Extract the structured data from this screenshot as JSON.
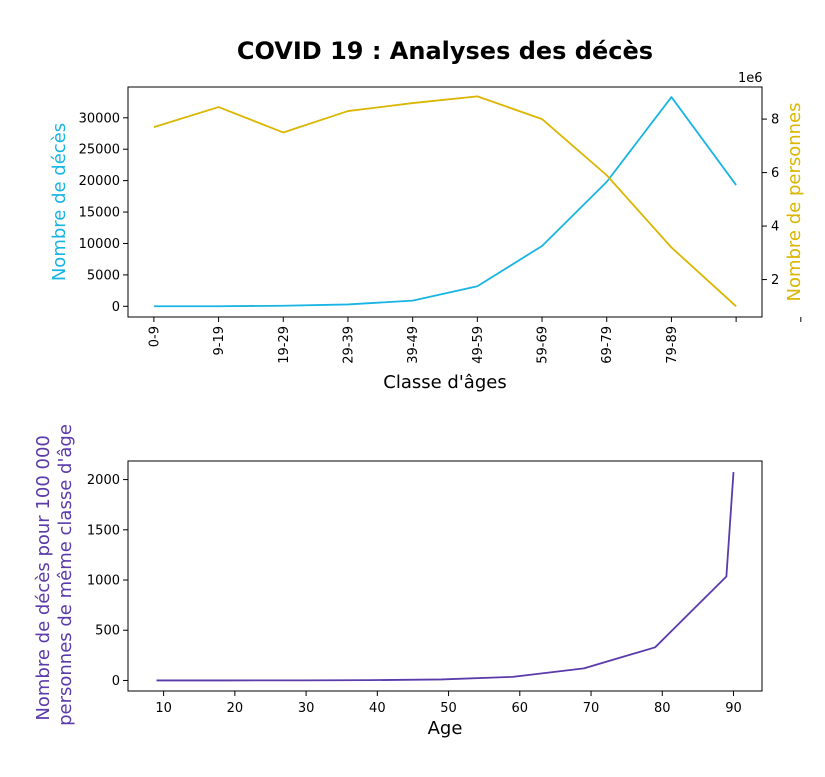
{
  "chart_data": [
    {
      "type": "line",
      "title": "COVID 19 : Analyses des décès",
      "xlabel": "Classe d'âges",
      "categories": [
        "0-9",
        "9-19",
        "19-29",
        "29-39",
        "39-49",
        "49-59",
        "59-69",
        "69-79",
        "79-89",
        "",
        ""
      ],
      "y_left": {
        "label": "Nombre de décès",
        "color": "#17b4e4",
        "ticks": [
          0,
          5000,
          10000,
          15000,
          20000,
          25000,
          30000
        ],
        "ylim": [
          -1700,
          34900
        ],
        "values": [
          5,
          15,
          90,
          300,
          900,
          3200,
          9600,
          19800,
          33300,
          19300
        ]
      },
      "y_right": {
        "label": "Nombre de personnes",
        "color": "#dab600",
        "offset_text": "1e6",
        "ticks": [
          2,
          4,
          6,
          8
        ],
        "ylim": [
          0.6,
          9.2
        ],
        "values": [
          7.7,
          8.45,
          7.5,
          8.3,
          8.6,
          8.85,
          8.0,
          5.9,
          3.2,
          1.0
        ]
      }
    },
    {
      "type": "line",
      "xlabel": "Age",
      "ylabel": "Nombre de décès pour 100 000 personnes de même classe d'âge",
      "ylabel_lines": [
        "Nombre de décès pour 100 000",
        "personnes de même classe d'âge"
      ],
      "color": "#5b3aaa",
      "xlim": [
        5,
        94
      ],
      "ylim": [
        -105,
        2185
      ],
      "xticks": [
        10,
        20,
        30,
        40,
        50,
        60,
        70,
        80,
        90
      ],
      "yticks": [
        0,
        500,
        1000,
        1500,
        2000
      ],
      "x": [
        9,
        19,
        29,
        39,
        49,
        59,
        69,
        79,
        89,
        90
      ],
      "values": [
        0.1,
        0.2,
        1,
        3,
        10,
        36,
        120,
        330,
        1035,
        2075
      ]
    }
  ]
}
